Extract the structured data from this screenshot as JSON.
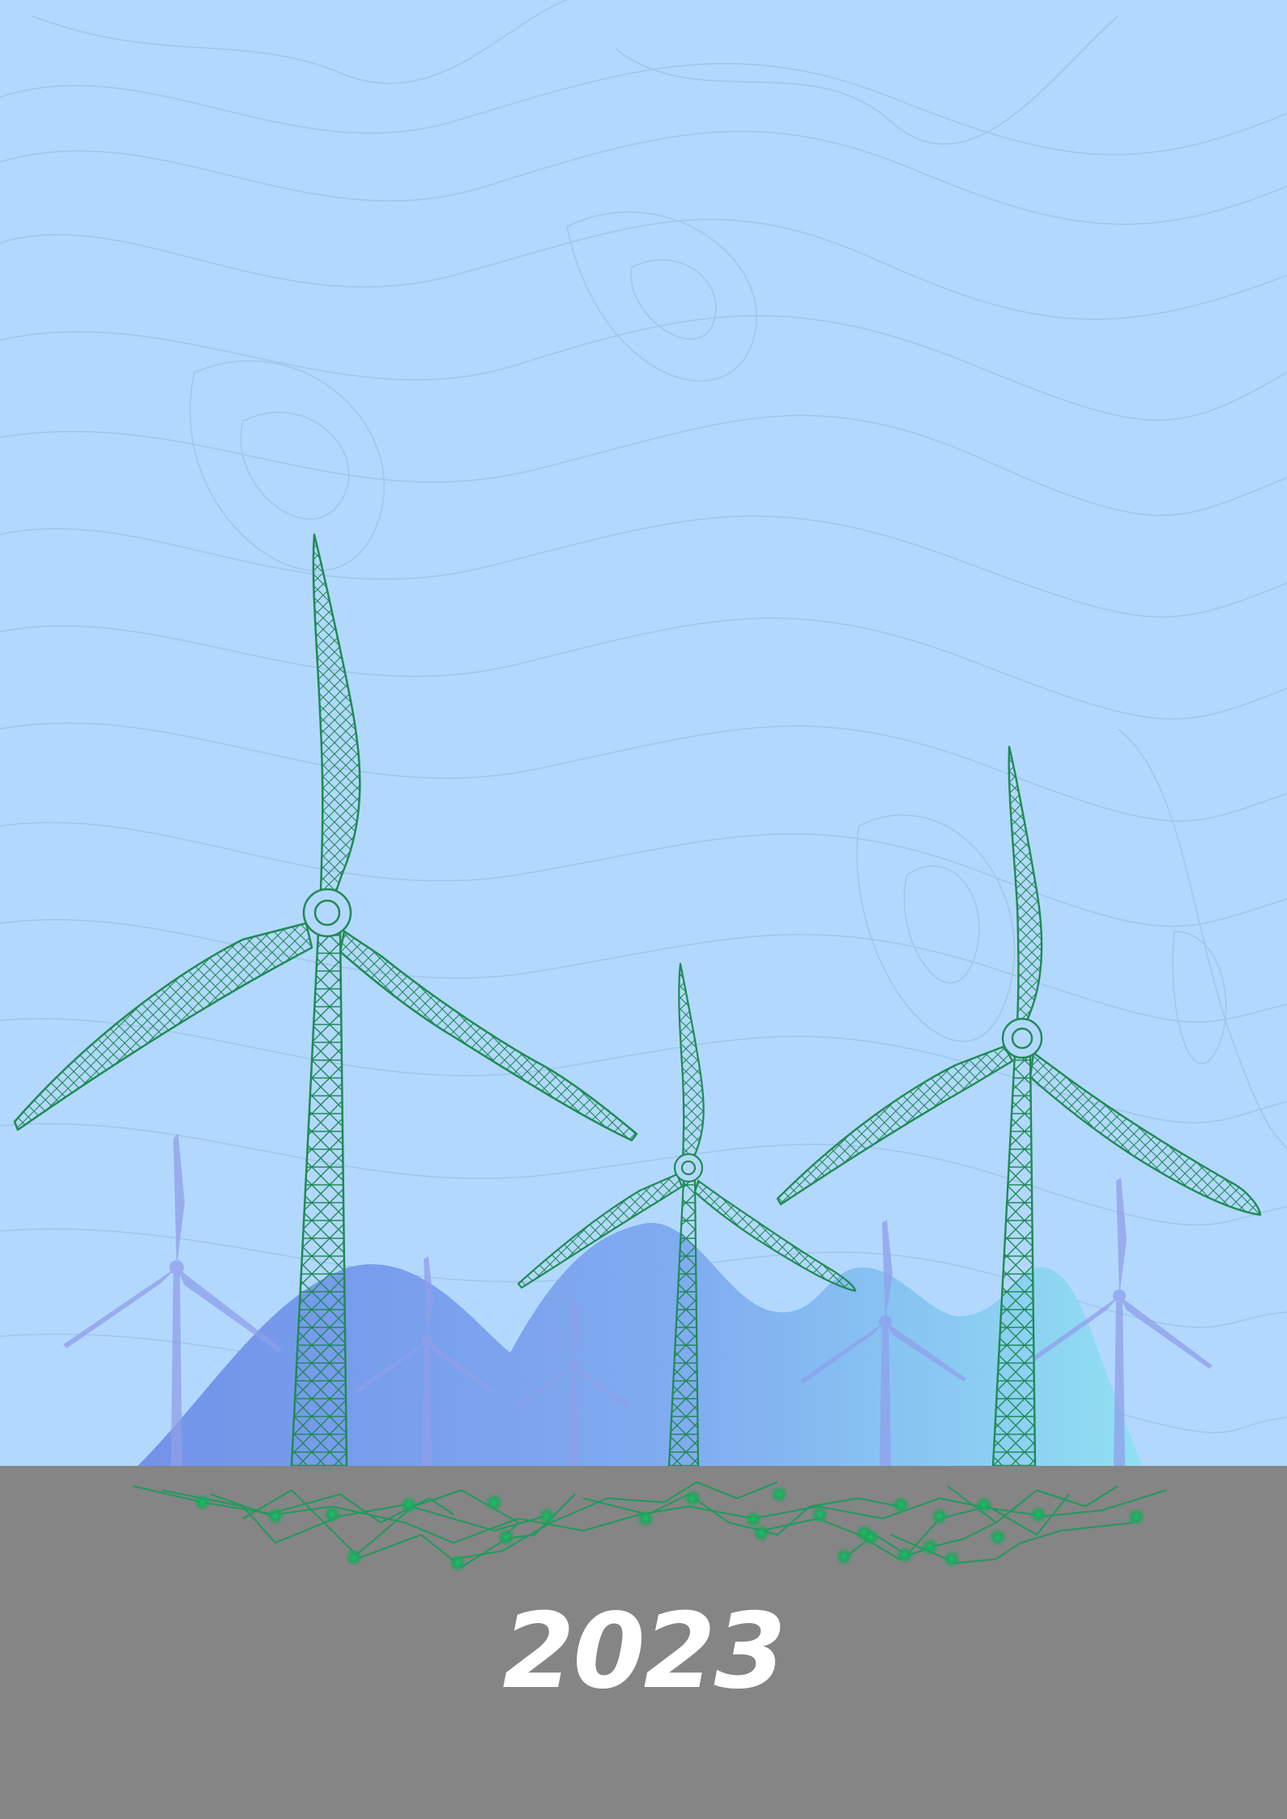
{
  "cover": {
    "year": "2023"
  },
  "colors": {
    "sky": "#b3d8fd",
    "ground": "#858585",
    "turbine_green": "#1f8a55",
    "hill_blue": "#7aa6ef",
    "hill_cyan": "#8fdcf1",
    "ghost_turbine": "#8f9fea",
    "year_text": "#ffffff"
  },
  "icons": {
    "foreground": "wind-turbine-icon",
    "background": "wind-turbine-silhouette-icon",
    "ground": "network-nodes-icon",
    "backdrop": "topographic-contour-lines"
  }
}
